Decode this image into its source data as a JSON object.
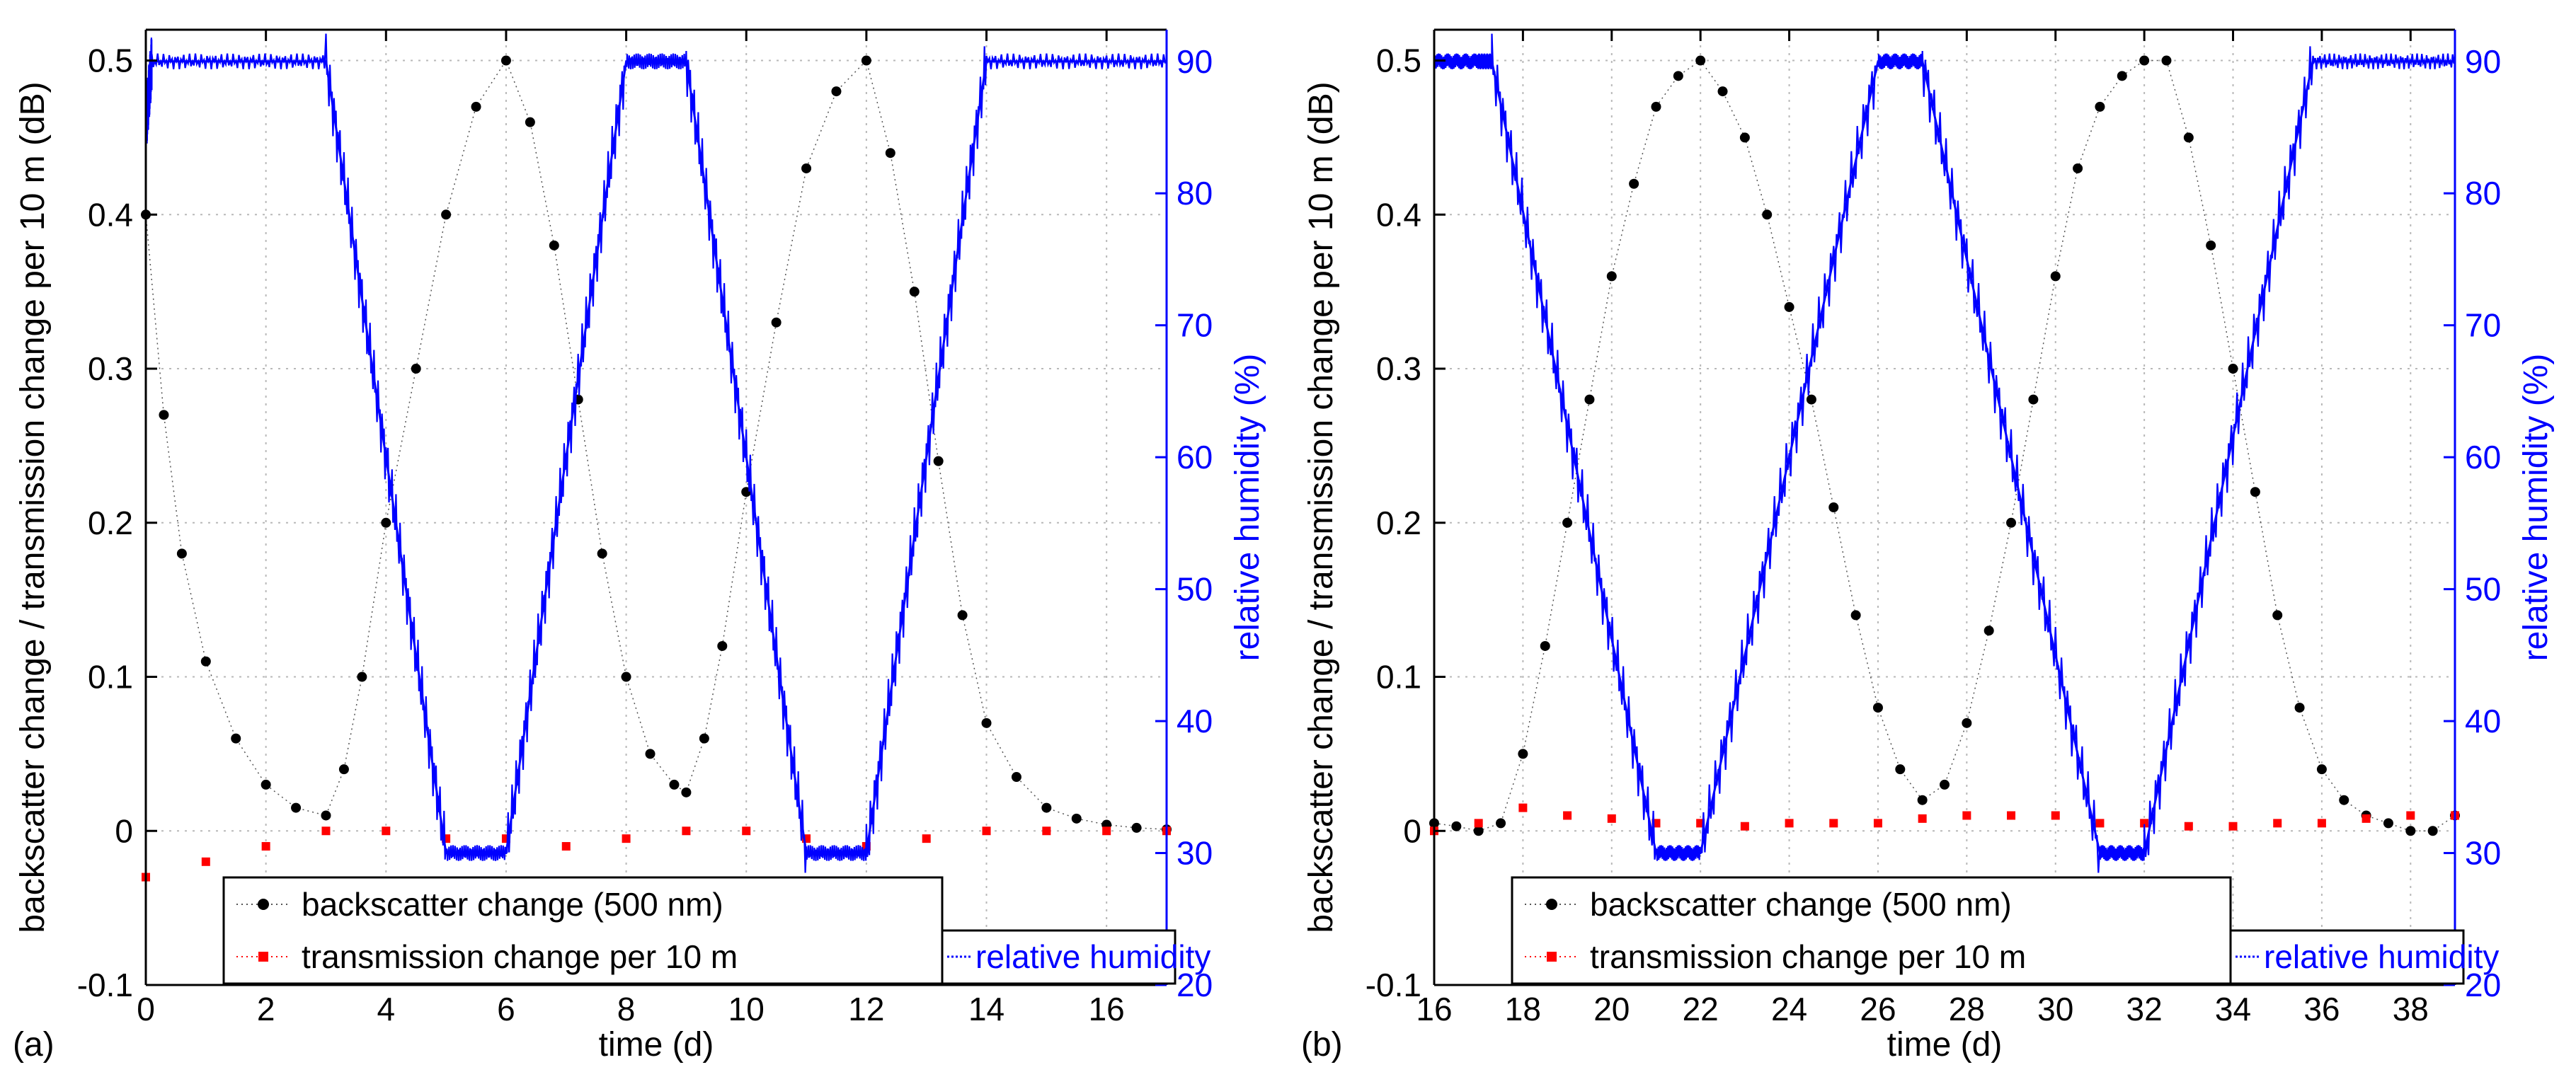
{
  "chart_data": [
    {
      "type": "line",
      "panel_label": "(a)",
      "xlabel": "time (d)",
      "ylabel": "backscatter change / transmission change per 10 m (dB)",
      "y2label": "relative humidity (%)",
      "xlim": [
        0,
        17
      ],
      "ylim": [
        -0.1,
        0.52
      ],
      "y2lim": [
        20,
        92.4
      ],
      "xticks": [
        0,
        2,
        4,
        6,
        8,
        10,
        12,
        14,
        16
      ],
      "yticks": [
        -0.1,
        0,
        0.1,
        0.2,
        0.3,
        0.4,
        0.5
      ],
      "y2ticks": [
        20,
        30,
        40,
        50,
        60,
        70,
        80,
        90
      ],
      "xtick_labels": [
        "0",
        "2",
        "4",
        "6",
        "8",
        "10",
        "12",
        "14",
        "16"
      ],
      "ytick_labels": [
        "-0.1",
        "0",
        "0.1",
        "0.2",
        "0.3",
        "0.4",
        "0.5"
      ],
      "y2tick_labels": [
        "20",
        "30",
        "40",
        "50",
        "60",
        "70",
        "80",
        "90"
      ],
      "series": [
        {
          "name": "backscatter change (500 nm)",
          "axis": "left",
          "style": "dots",
          "color": "#000000",
          "x": [
            0,
            0.3,
            0.6,
            1.0,
            1.5,
            2.0,
            2.5,
            3.0,
            3.3,
            3.6,
            4.0,
            4.5,
            5.0,
            5.5,
            6.0,
            6.4,
            6.8,
            7.2,
            7.6,
            8.0,
            8.4,
            8.8,
            9.0,
            9.3,
            9.6,
            10.0,
            10.5,
            11.0,
            11.5,
            12.0,
            12.4,
            12.8,
            13.2,
            13.6,
            14.0,
            14.5,
            15.0,
            15.5,
            16.0,
            16.5,
            17.0
          ],
          "values": [
            0.4,
            0.27,
            0.18,
            0.11,
            0.06,
            0.03,
            0.015,
            0.01,
            0.04,
            0.1,
            0.2,
            0.3,
            0.4,
            0.47,
            0.5,
            0.46,
            0.38,
            0.28,
            0.18,
            0.1,
            0.05,
            0.03,
            0.025,
            0.06,
            0.12,
            0.22,
            0.33,
            0.43,
            0.48,
            0.5,
            0.44,
            0.35,
            0.24,
            0.14,
            0.07,
            0.035,
            0.015,
            0.008,
            0.004,
            0.002,
            0.001
          ]
        },
        {
          "name": "transmission change per 10 m",
          "axis": "left",
          "style": "squares",
          "color": "#ff0000",
          "x": [
            0,
            1,
            2,
            3,
            4,
            5,
            6,
            7,
            8,
            9,
            10,
            11,
            12,
            13,
            14,
            15,
            16,
            17
          ],
          "values": [
            -0.03,
            -0.02,
            -0.01,
            0.0,
            0.0,
            -0.005,
            -0.005,
            -0.01,
            -0.005,
            0.0,
            0.0,
            -0.005,
            -0.01,
            -0.005,
            0.0,
            0.0,
            0.0,
            0.0
          ]
        },
        {
          "name": "relative humidity",
          "axis": "right",
          "style": "line",
          "color": "#0000ff",
          "x": [
            0,
            0.1,
            3.0,
            5.0,
            6.0,
            8.0,
            9.0,
            11.0,
            12.0,
            14.0,
            17.0
          ],
          "values": [
            85,
            90,
            90,
            30,
            30,
            90,
            90,
            30,
            30,
            90,
            90
          ]
        }
      ],
      "legend": {
        "position": "bottom",
        "entries": [
          "backscatter change (500 nm)",
          "transmission change per 10 m",
          "relative humidity"
        ]
      }
    },
    {
      "type": "line",
      "panel_label": "(b)",
      "xlabel": "time (d)",
      "ylabel": "backscatter change / transmission change per 10 m (dB)",
      "y2label": "relative humidity (%)",
      "xlim": [
        16,
        39
      ],
      "ylim": [
        -0.1,
        0.52
      ],
      "y2lim": [
        20,
        92.4
      ],
      "xticks": [
        16,
        18,
        20,
        22,
        24,
        26,
        28,
        30,
        32,
        34,
        36,
        38
      ],
      "yticks": [
        -0.1,
        0,
        0.1,
        0.2,
        0.3,
        0.4,
        0.5
      ],
      "y2ticks": [
        20,
        30,
        40,
        50,
        60,
        70,
        80,
        90
      ],
      "xtick_labels": [
        "16",
        "18",
        "20",
        "22",
        "24",
        "26",
        "28",
        "30",
        "32",
        "34",
        "36",
        "38"
      ],
      "ytick_labels": [
        "-0.1",
        "0",
        "0.1",
        "0.2",
        "0.3",
        "0.4",
        "0.5"
      ],
      "y2tick_labels": [
        "20",
        "30",
        "40",
        "50",
        "60",
        "70",
        "80",
        "90"
      ],
      "series": [
        {
          "name": "backscatter change (500 nm)",
          "axis": "left",
          "style": "dots",
          "color": "#000000",
          "x": [
            16,
            16.5,
            17,
            17.5,
            18,
            18.5,
            19,
            19.5,
            20,
            20.5,
            21,
            21.5,
            22,
            22.5,
            23,
            23.5,
            24,
            24.5,
            25,
            25.5,
            26,
            26.5,
            27,
            27.5,
            28,
            28.5,
            29,
            29.5,
            30,
            30.5,
            31,
            31.5,
            32,
            32.5,
            33,
            33.5,
            34,
            34.5,
            35,
            35.5,
            36,
            36.5,
            37,
            37.5,
            38,
            38.5,
            39
          ],
          "values": [
            0.005,
            0.003,
            0.0,
            0.005,
            0.05,
            0.12,
            0.2,
            0.28,
            0.36,
            0.42,
            0.47,
            0.49,
            0.5,
            0.48,
            0.45,
            0.4,
            0.34,
            0.28,
            0.21,
            0.14,
            0.08,
            0.04,
            0.02,
            0.03,
            0.07,
            0.13,
            0.2,
            0.28,
            0.36,
            0.43,
            0.47,
            0.49,
            0.5,
            0.5,
            0.45,
            0.38,
            0.3,
            0.22,
            0.14,
            0.08,
            0.04,
            0.02,
            0.01,
            0.005,
            0.0,
            0.0,
            0.01
          ]
        },
        {
          "name": "transmission change per 10 m",
          "axis": "left",
          "style": "squares",
          "color": "#ff0000",
          "x": [
            16,
            17,
            18,
            19,
            20,
            21,
            22,
            23,
            24,
            25,
            26,
            27,
            28,
            29,
            30,
            31,
            32,
            33,
            34,
            35,
            36,
            37,
            38,
            39
          ],
          "values": [
            0.0,
            0.005,
            0.015,
            0.01,
            0.008,
            0.005,
            0.005,
            0.003,
            0.005,
            0.005,
            0.005,
            0.008,
            0.01,
            0.01,
            0.01,
            0.005,
            0.005,
            0.003,
            0.003,
            0.005,
            0.005,
            0.008,
            0.01,
            0.01
          ]
        },
        {
          "name": "relative humidity",
          "axis": "right",
          "style": "line",
          "color": "#0000ff",
          "x": [
            16,
            17.0,
            17.3,
            21.0,
            22.0,
            26.0,
            27.0,
            31.0,
            32.0,
            35.8,
            39.0
          ],
          "values": [
            90,
            90,
            90,
            30,
            30,
            90,
            90,
            30,
            30,
            90,
            90
          ]
        }
      ],
      "legend": {
        "position": "bottom",
        "entries": [
          "backscatter change (500 nm)",
          "transmission change per 10 m",
          "relative humidity"
        ]
      }
    }
  ]
}
